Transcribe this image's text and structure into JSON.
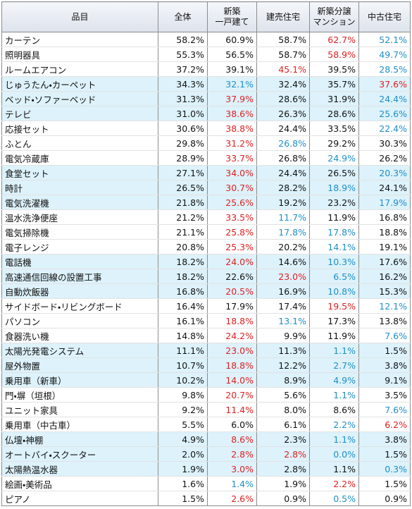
{
  "table": {
    "header": [
      "品目",
      "全体",
      "新築\n一戸建て",
      "建売住宅",
      "新築分譲\nマンション",
      "中古住宅"
    ],
    "rows": [
      {
        "label": "カーテン",
        "values": [
          "58.2%",
          "60.9%",
          "58.7%",
          "62.7%",
          "52.1%"
        ],
        "colors": [
          null,
          null,
          null,
          "#e02020",
          "#1f8fc7"
        ]
      },
      {
        "label": "照明器具",
        "values": [
          "55.3%",
          "56.5%",
          "58.7%",
          "58.9%",
          "49.7%"
        ],
        "colors": [
          null,
          null,
          null,
          "#e02020",
          "#1f8fc7"
        ]
      },
      {
        "label": "ルームエアコン",
        "values": [
          "37.2%",
          "39.1%",
          "45.1%",
          "39.5%",
          "28.5%"
        ],
        "colors": [
          null,
          null,
          "#e02020",
          null,
          "#1f8fc7"
        ]
      },
      {
        "label": "じゅうたん・カーペット",
        "values": [
          "34.3%",
          "32.1%",
          "32.4%",
          "35.7%",
          "37.6%"
        ],
        "colors": [
          null,
          "#1f8fc7",
          null,
          null,
          "#e02020"
        ]
      },
      {
        "label": "ベッド・ソファーベッド",
        "values": [
          "31.3%",
          "37.9%",
          "28.6%",
          "31.9%",
          "24.4%"
        ],
        "colors": [
          null,
          "#e02020",
          null,
          null,
          "#1f8fc7"
        ]
      },
      {
        "label": "テレビ",
        "values": [
          "31.0%",
          "38.6%",
          "26.3%",
          "28.6%",
          "25.6%"
        ],
        "colors": [
          null,
          "#e02020",
          null,
          null,
          "#1f8fc7"
        ]
      },
      {
        "label": "応接セット",
        "values": [
          "30.6%",
          "38.8%",
          "24.4%",
          "33.5%",
          "22.4%"
        ],
        "colors": [
          null,
          "#e02020",
          null,
          null,
          "#1f8fc7"
        ]
      },
      {
        "label": "ふとん",
        "values": [
          "29.8%",
          "31.2%",
          "26.8%",
          "29.2%",
          "30.3%"
        ],
        "colors": [
          null,
          "#e02020",
          "#1f8fc7",
          null,
          null
        ]
      },
      {
        "label": "電気冷蔵庫",
        "values": [
          "28.9%",
          "33.7%",
          "26.8%",
          "24.9%",
          "26.2%"
        ],
        "colors": [
          null,
          "#e02020",
          null,
          "#1f8fc7",
          null
        ]
      },
      {
        "label": "食堂セット",
        "values": [
          "27.1%",
          "34.0%",
          "24.4%",
          "26.5%",
          "20.3%"
        ],
        "colors": [
          null,
          "#e02020",
          null,
          null,
          "#1f8fc7"
        ]
      },
      {
        "label": "時計",
        "values": [
          "26.5%",
          "30.7%",
          "28.2%",
          "18.9%",
          "24.1%"
        ],
        "colors": [
          null,
          "#e02020",
          null,
          "#1f8fc7",
          null
        ]
      },
      {
        "label": "電気洗濯機",
        "values": [
          "21.8%",
          "25.6%",
          "19.2%",
          "23.2%",
          "17.9%"
        ],
        "colors": [
          null,
          "#e02020",
          null,
          null,
          "#1f8fc7"
        ]
      },
      {
        "label": "温水洗浄便座",
        "values": [
          "21.2%",
          "33.5%",
          "11.7%",
          "11.9%",
          "16.8%"
        ],
        "colors": [
          null,
          "#e02020",
          "#1f8fc7",
          null,
          null
        ]
      },
      {
        "label": "電気掃除機",
        "values": [
          "21.1%",
          "25.8%",
          "17.8%",
          "17.8%",
          "18.8%"
        ],
        "colors": [
          null,
          "#e02020",
          "#1f8fc7",
          "#1f8fc7",
          null
        ]
      },
      {
        "label": "電子レンジ",
        "values": [
          "20.8%",
          "25.3%",
          "20.2%",
          "14.1%",
          "19.1%"
        ],
        "colors": [
          null,
          "#e02020",
          null,
          "#1f8fc7",
          null
        ]
      },
      {
        "label": "電話機",
        "values": [
          "18.2%",
          "24.0%",
          "14.6%",
          "10.3%",
          "17.6%"
        ],
        "colors": [
          null,
          "#e02020",
          null,
          "#1f8fc7",
          null
        ]
      },
      {
        "label": "高速通信回線の設置工事",
        "values": [
          "18.2%",
          "22.6%",
          "23.0%",
          "6.5%",
          "16.2%"
        ],
        "colors": [
          null,
          null,
          "#e02020",
          "#1f8fc7",
          null
        ]
      },
      {
        "label": "自動炊飯器",
        "values": [
          "16.8%",
          "20.5%",
          "16.9%",
          "10.8%",
          "15.3%"
        ],
        "colors": [
          null,
          "#e02020",
          null,
          "#1f8fc7",
          null
        ]
      },
      {
        "label": "サイドボード・リビングボード",
        "values": [
          "16.4%",
          "17.9%",
          "17.4%",
          "19.5%",
          "12.1%"
        ],
        "colors": [
          null,
          null,
          null,
          "#e02020",
          "#1f8fc7"
        ]
      },
      {
        "label": "パソコン",
        "values": [
          "16.1%",
          "18.8%",
          "13.1%",
          "17.3%",
          "13.8%"
        ],
        "colors": [
          null,
          "#e02020",
          "#1f8fc7",
          null,
          null
        ]
      },
      {
        "label": "食器洗い機",
        "values": [
          "14.8%",
          "24.2%",
          "9.9%",
          "11.9%",
          "7.6%"
        ],
        "colors": [
          null,
          "#e02020",
          null,
          null,
          "#1f8fc7"
        ]
      },
      {
        "label": "太陽光発電システム",
        "values": [
          "11.1%",
          "23.0%",
          "11.3%",
          "1.1%",
          "1.5%"
        ],
        "colors": [
          null,
          "#e02020",
          null,
          "#1f8fc7",
          null
        ]
      },
      {
        "label": "屋外物置",
        "values": [
          "10.7%",
          "18.8%",
          "12.2%",
          "2.7%",
          "3.8%"
        ],
        "colors": [
          null,
          "#e02020",
          null,
          "#1f8fc7",
          null
        ]
      },
      {
        "label": "乗用車（新車）",
        "values": [
          "10.2%",
          "14.0%",
          "8.9%",
          "4.9%",
          "9.1%"
        ],
        "colors": [
          null,
          "#e02020",
          null,
          "#1f8fc7",
          null
        ]
      },
      {
        "label": "門・塀（垣根）",
        "values": [
          "9.8%",
          "20.7%",
          "5.6%",
          "1.1%",
          "3.5%"
        ],
        "colors": [
          null,
          "#e02020",
          null,
          "#1f8fc7",
          null
        ]
      },
      {
        "label": "ユニット家具",
        "values": [
          "9.2%",
          "11.4%",
          "8.0%",
          "8.6%",
          "7.6%"
        ],
        "colors": [
          null,
          "#e02020",
          null,
          null,
          "#1f8fc7"
        ]
      },
      {
        "label": "乗用車（中古車）",
        "values": [
          "5.5%",
          "6.0%",
          "6.1%",
          "2.2%",
          "6.2%"
        ],
        "colors": [
          null,
          null,
          null,
          "#1f8fc7",
          "#e02020"
        ]
      },
      {
        "label": "仏壇・神棚",
        "values": [
          "4.9%",
          "8.6%",
          "2.3%",
          "1.1%",
          "3.8%"
        ],
        "colors": [
          null,
          "#e02020",
          null,
          "#1f8fc7",
          null
        ]
      },
      {
        "label": "オートバイ・スクーター",
        "values": [
          "2.0%",
          "2.8%",
          "2.8%",
          "0.0%",
          "1.5%"
        ],
        "colors": [
          null,
          "#e02020",
          "#e02020",
          "#1f8fc7",
          null
        ]
      },
      {
        "label": "太陽熱温水器",
        "values": [
          "1.9%",
          "3.0%",
          "2.8%",
          "1.1%",
          "0.3%"
        ],
        "colors": [
          null,
          "#e02020",
          null,
          null,
          "#1f8fc7"
        ]
      },
      {
        "label": "絵画・美術品",
        "values": [
          "1.6%",
          "1.4%",
          "1.9%",
          "2.2%",
          "1.5%"
        ],
        "colors": [
          null,
          "#1f8fc7",
          null,
          "#e02020",
          null
        ]
      },
      {
        "label": "ピアノ",
        "values": [
          "1.5%",
          "2.6%",
          "0.9%",
          "0.5%",
          "0.9%"
        ],
        "colors": [
          null,
          "#e02020",
          null,
          "#1f8fc7",
          null
        ]
      }
    ]
  }
}
